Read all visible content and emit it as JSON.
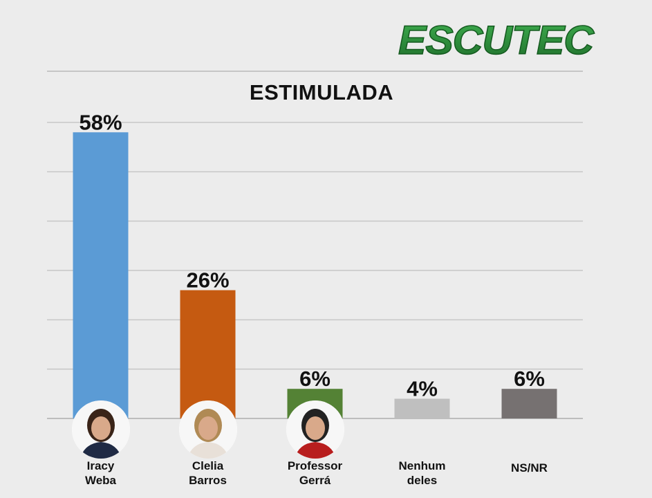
{
  "logo_text": "ESCUTEC",
  "colors": {
    "logo_green": "#2e8b3c",
    "grid": "#c6c6c6",
    "axis": "#bdbdbd"
  },
  "chart_data": {
    "type": "bar",
    "title": "ESTIMULADA",
    "categories": [
      {
        "line1": "Iracy",
        "line2": "Weba"
      },
      {
        "line1": "Clelia",
        "line2": "Barros"
      },
      {
        "line1": "Professor",
        "line2": "Gerrá"
      },
      {
        "line1": "Nenhum",
        "line2": "deles"
      },
      {
        "line1": "NS/NR",
        "line2": ""
      }
    ],
    "values": [
      58,
      26,
      6,
      4,
      6
    ],
    "value_labels": [
      "58%",
      "26%",
      "6%",
      "4%",
      "6%"
    ],
    "colors": [
      "#5b9bd5",
      "#c55a11",
      "#548235",
      "#bfbfbf",
      "#767171"
    ],
    "photos": [
      true,
      true,
      true,
      false,
      false
    ],
    "ylim": [
      0,
      60
    ],
    "grid": true,
    "legend": "none"
  }
}
